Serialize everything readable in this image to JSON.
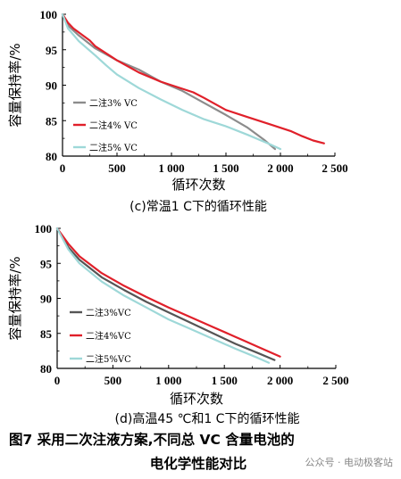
{
  "figure_caption_line1": "图7   采用二次注液方案,不同总 VC 含量电池的",
  "figure_caption_line2": "电化学性能对比",
  "watermark": "公众号 · 电动极客站",
  "colors": {
    "s3": "#8c8c8c",
    "s4": "#e0202a",
    "s5": "#9ed8d8",
    "dark3": "#555555"
  },
  "chart_data": [
    {
      "type": "line",
      "caption": "(c)常温1 C下的循环性能",
      "xlabel": "循环次数",
      "ylabel": "容量保持率/%",
      "xlim": [
        0,
        2500
      ],
      "ylim": [
        80,
        100
      ],
      "xticks": [
        "0",
        "500",
        "1 000",
        "1 500",
        "2 000",
        "2 500"
      ],
      "yticks": [
        "80",
        "85",
        "90",
        "95",
        "100"
      ],
      "grid": false,
      "legend_position": "lower-left",
      "series": [
        {
          "name": "二注3% VC",
          "color": "#8c8c8c",
          "x": [
            0,
            50,
            150,
            300,
            500,
            700,
            900,
            1100,
            1300,
            1500,
            1700,
            1850,
            1950
          ],
          "y": [
            100,
            98.4,
            97,
            95.2,
            93.5,
            92.2,
            90.5,
            89.2,
            87.5,
            85.8,
            84,
            82.3,
            81
          ]
        },
        {
          "name": "二注4% VC",
          "color": "#e0202a",
          "x": [
            0,
            50,
            100,
            250,
            300,
            500,
            700,
            900,
            1100,
            1200,
            1300,
            1500,
            1700,
            1900,
            2000,
            2100,
            2200,
            2300,
            2400
          ],
          "y": [
            100,
            98.8,
            98,
            96.3,
            95.5,
            93.5,
            91.8,
            90.5,
            89.5,
            89,
            88.2,
            86.5,
            85.5,
            84.5,
            84,
            83.5,
            82.8,
            82.2,
            81.8
          ]
        },
        {
          "name": "二注5% VC",
          "color": "#9ed8d8",
          "x": [
            0,
            50,
            150,
            300,
            400,
            500,
            700,
            900,
            1100,
            1300,
            1500,
            1700,
            1900,
            2000
          ],
          "y": [
            100,
            98,
            96.2,
            94.2,
            92.8,
            91.5,
            89.6,
            88,
            86.5,
            85.2,
            84.2,
            83,
            81.7,
            81
          ]
        }
      ]
    },
    {
      "type": "line",
      "caption": "(d)高温45 ℃和1 C下的循环性能",
      "xlabel": "循环次数",
      "ylabel": "容量保持率/%",
      "xlim": [
        0,
        2500
      ],
      "ylim": [
        80,
        100
      ],
      "xticks": [
        "0",
        "500",
        "1 000",
        "1 500",
        "2 000",
        "2 500"
      ],
      "yticks": [
        "80",
        "85",
        "90",
        "95",
        "100"
      ],
      "grid": false,
      "legend_position": "lower-left",
      "series": [
        {
          "name": "二注3%VC",
          "color": "#555555",
          "x": [
            0,
            100,
            200,
            400,
            600,
            800,
            1000,
            1200,
            1400,
            1600,
            1800,
            1950
          ],
          "y": [
            100,
            97.3,
            95.5,
            93,
            91.2,
            89.5,
            88,
            86.5,
            85,
            83.5,
            82.2,
            81.2
          ]
        },
        {
          "name": "二注4%VC",
          "color": "#e0202a",
          "x": [
            0,
            100,
            200,
            400,
            600,
            800,
            1000,
            1200,
            1400,
            1600,
            1800,
            1900,
            2000
          ],
          "y": [
            100,
            97.8,
            96,
            93.6,
            91.8,
            90.2,
            88.7,
            87.3,
            85.9,
            84.5,
            83.1,
            82.4,
            81.7
          ]
        },
        {
          "name": "二注5%VC",
          "color": "#9ed8d8",
          "x": [
            0,
            100,
            200,
            400,
            600,
            800,
            1000,
            1200,
            1400,
            1600,
            1800,
            1900
          ],
          "y": [
            100,
            97,
            95,
            92.4,
            90.4,
            88.7,
            87,
            85.6,
            84.2,
            82.8,
            81.5,
            80.8
          ]
        }
      ]
    }
  ]
}
